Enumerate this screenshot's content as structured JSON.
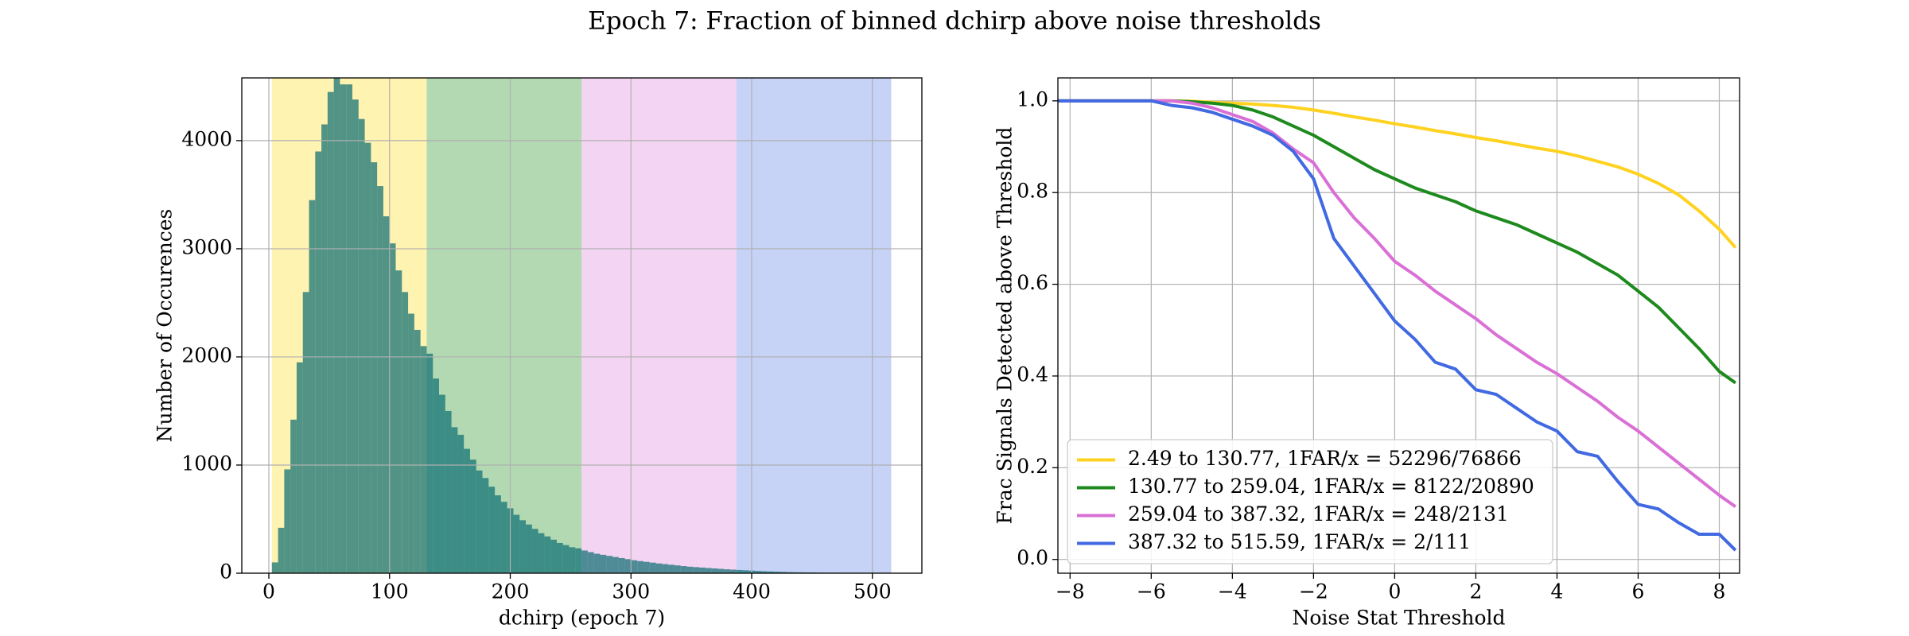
{
  "title": "Epoch 7: Fraction of binned dchirp above noise thresholds",
  "chart_data": [
    {
      "type": "histogram",
      "xlabel": "dchirp (epoch 7)",
      "ylabel": "Number of Occurences",
      "bins": [
        2.49,
        7.62,
        12.75,
        17.88,
        23.01,
        28.15,
        33.28,
        38.41,
        43.54,
        48.67,
        53.8,
        58.93,
        64.06,
        69.19,
        74.32,
        79.46,
        84.59,
        89.72,
        94.85,
        99.98,
        105.11,
        110.24,
        115.37,
        120.5,
        125.63,
        130.77,
        135.9,
        141.03,
        146.16,
        151.29,
        156.42,
        161.55,
        166.68,
        171.81,
        176.94,
        182.08,
        187.21,
        192.34,
        197.47,
        202.6,
        207.73,
        212.86,
        217.99,
        223.12,
        228.25,
        233.39,
        238.52,
        243.65,
        248.78,
        253.91,
        259.04,
        264.17,
        269.3,
        274.43,
        279.56,
        284.7,
        289.83,
        294.96,
        300.09,
        305.22,
        310.35,
        315.48,
        320.61,
        325.74,
        330.87,
        336.01,
        341.14,
        346.27,
        351.4,
        356.53,
        361.66,
        366.79,
        371.92,
        377.05,
        382.18,
        387.32,
        392.45,
        397.58,
        402.71,
        407.84,
        412.97,
        418.1,
        423.23,
        428.36,
        433.49,
        438.63,
        443.76,
        448.89,
        454.02,
        459.15,
        464.28,
        469.41,
        474.54,
        479.67,
        484.8,
        489.94,
        495.07,
        500.2,
        505.33,
        510.46,
        515.59
      ],
      "values": [
        100,
        420,
        960,
        1420,
        1950,
        2600,
        3450,
        3900,
        4150,
        4450,
        4580,
        4520,
        4520,
        4380,
        4200,
        3980,
        3800,
        3580,
        3300,
        3050,
        2800,
        2600,
        2400,
        2250,
        2100,
        2030,
        1800,
        1650,
        1500,
        1350,
        1280,
        1150,
        1050,
        950,
        880,
        800,
        720,
        660,
        600,
        540,
        490,
        450,
        410,
        370,
        340,
        310,
        280,
        260,
        240,
        230,
        210,
        195,
        180,
        170,
        160,
        150,
        140,
        130,
        120,
        112,
        105,
        98,
        90,
        84,
        78,
        72,
        66,
        60,
        56,
        52,
        48,
        44,
        40,
        36,
        33,
        30,
        27,
        24,
        21,
        18,
        16,
        14,
        12,
        10,
        9,
        8,
        7,
        6,
        5,
        4,
        4,
        3,
        3,
        2,
        2,
        2,
        1,
        1,
        1,
        1
      ],
      "color": "#0e6f73",
      "alpha": 0.72,
      "bands": [
        {
          "from": 2.49,
          "to": 130.77,
          "color": "gold"
        },
        {
          "from": 130.77,
          "to": 259.04,
          "color": "green"
        },
        {
          "from": 259.04,
          "to": 387.32,
          "color": "orchid"
        },
        {
          "from": 387.32,
          "to": 515.59,
          "color": "royalblue"
        }
      ],
      "band_alpha": 0.3,
      "xlim": [
        -22.4,
        541
      ],
      "ylim": [
        0,
        4580
      ],
      "xticks": [
        0,
        100,
        200,
        300,
        400,
        500
      ],
      "yticks": [
        0,
        1000,
        2000,
        3000,
        4000
      ],
      "grid": true
    },
    {
      "type": "line",
      "xlabel": "Noise Stat Threshold",
      "ylabel": "Frac Signals Detected above Threshold",
      "x": [
        -8.3,
        -7,
        -6,
        -5.5,
        -5,
        -4.5,
        -4,
        -3.5,
        -3,
        -2.5,
        -2,
        -1.5,
        -1,
        -0.5,
        0,
        0.5,
        1,
        1.5,
        2,
        2.5,
        3,
        3.5,
        4,
        4.5,
        5,
        5.5,
        6,
        6.5,
        7,
        7.5,
        8,
        8.4
      ],
      "series": [
        {
          "name": "2.49 to 130.77, 1FAR/x = 52296/76866",
          "color": "#ffd21f",
          "values": [
            1,
            1,
            1,
            1,
            0.999,
            0.997,
            0.995,
            0.993,
            0.99,
            0.986,
            0.98,
            0.973,
            0.965,
            0.958,
            0.95,
            0.943,
            0.935,
            0.928,
            0.92,
            0.913,
            0.905,
            0.897,
            0.89,
            0.88,
            0.868,
            0.856,
            0.84,
            0.82,
            0.795,
            0.76,
            0.72,
            0.68
          ]
        },
        {
          "name": "130.77 to 259.04, 1FAR/x = 8122/20890",
          "color": "#1e8a1e",
          "values": [
            1,
            1,
            1,
            1,
            0.998,
            0.995,
            0.99,
            0.98,
            0.965,
            0.945,
            0.925,
            0.9,
            0.875,
            0.85,
            0.83,
            0.81,
            0.795,
            0.78,
            0.76,
            0.745,
            0.73,
            0.71,
            0.69,
            0.67,
            0.645,
            0.62,
            0.585,
            0.55,
            0.505,
            0.46,
            0.41,
            0.385
          ]
        },
        {
          "name": "259.04 to 387.32, 1FAR/x = 248/2131",
          "color": "#da70d6",
          "values": [
            1,
            1,
            1,
            1,
            0.995,
            0.985,
            0.97,
            0.955,
            0.93,
            0.895,
            0.865,
            0.8,
            0.745,
            0.7,
            0.65,
            0.62,
            0.585,
            0.555,
            0.525,
            0.49,
            0.46,
            0.43,
            0.405,
            0.375,
            0.345,
            0.31,
            0.28,
            0.245,
            0.21,
            0.175,
            0.14,
            0.115
          ]
        },
        {
          "name": "387.32 to 515.59, 1FAR/x = 2/111",
          "color": "#4169e1",
          "values": [
            1,
            1,
            1,
            0.99,
            0.985,
            0.975,
            0.96,
            0.945,
            0.925,
            0.89,
            0.83,
            0.7,
            0.64,
            0.58,
            0.52,
            0.48,
            0.43,
            0.415,
            0.37,
            0.36,
            0.33,
            0.3,
            0.28,
            0.235,
            0.225,
            0.17,
            0.12,
            0.11,
            0.08,
            0.055,
            0.055,
            0.02
          ]
        }
      ],
      "xlim": [
        -8.3,
        8.5
      ],
      "ylim": [
        -0.03,
        1.05
      ],
      "xticks": [
        {
          "value": -8,
          "label": "−8"
        },
        {
          "value": -6,
          "label": "−6"
        },
        {
          "value": -4,
          "label": "−4"
        },
        {
          "value": -2,
          "label": "−2"
        },
        0,
        2,
        4,
        6,
        8
      ],
      "yticks": [
        {
          "value": 0,
          "label": "0.0"
        },
        0.2,
        0.4,
        0.6,
        0.8,
        {
          "value": 1,
          "label": "1.0"
        }
      ],
      "grid": true,
      "legend": "lower left"
    }
  ]
}
